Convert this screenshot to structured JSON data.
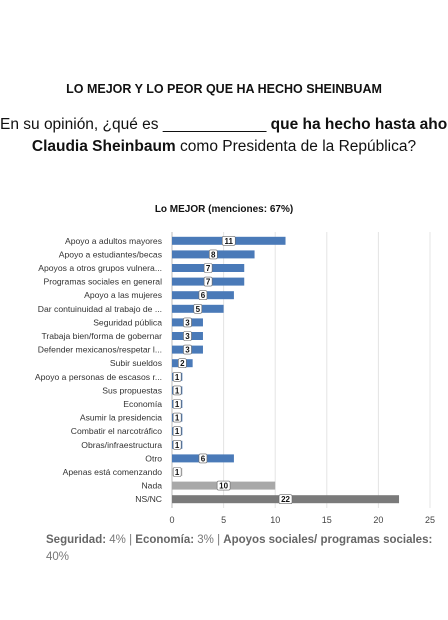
{
  "header": {
    "title": "LO MEJOR Y LO PEOR QUE HA HECHO SHEINBUAM",
    "question_part1": "En su opinión, ¿qué es",
    "question_blank": "____________",
    "question_part2": "que ha hecho hasta ahora",
    "question_name": "Claudia Sheinbaum",
    "question_part3": "como Presidenta de la República?"
  },
  "chart_data": {
    "type": "bar",
    "orientation": "horizontal",
    "title": "Lo MEJOR (menciones: 67%)",
    "categories": [
      "Apoyo a adultos mayores",
      "Apoyo a estudiantes/becas",
      "Apoyos a otros grupos vulnera...",
      "Programas sociales en general",
      "Apoyo a las mujeres",
      "Dar contuinuidad al trabajo de ...",
      "Seguridad pública",
      "Trabaja bien/forma de gobernar",
      "Defender mexicanos/respetar l...",
      "Subir sueldos",
      "Apoyo a personas de escasos r...",
      "Sus propuestas",
      "Economía",
      "Asumir la presidencia",
      "Combatir el narcotráfico",
      "Obras/infraestructura",
      "Otro",
      "Apenas está comenzando",
      "Nada",
      "NS/NC"
    ],
    "values": [
      11,
      8,
      7,
      7,
      6,
      5,
      3,
      3,
      3,
      2,
      1,
      1,
      1,
      1,
      1,
      1,
      6,
      1,
      10,
      22
    ],
    "bar_colors": [
      "#4a7ab8",
      "#4a7ab8",
      "#4a7ab8",
      "#4a7ab8",
      "#4a7ab8",
      "#4a7ab8",
      "#4a7ab8",
      "#4a7ab8",
      "#4a7ab8",
      "#4a7ab8",
      "#4a7ab8",
      "#4a7ab8",
      "#4a7ab8",
      "#4a7ab8",
      "#4a7ab8",
      "#4a7ab8",
      "#4a7ab8",
      "#c8c8c8",
      "#a8a8a8",
      "#7a7a7a"
    ],
    "xlim": [
      0,
      25
    ],
    "xticks": [
      0,
      5,
      10,
      15,
      20,
      25
    ],
    "grid": true,
    "legend": "none"
  },
  "footnote": {
    "seguridad_label": "Seguridad:",
    "seguridad_value": "4% |",
    "economia_label": "Economía:",
    "economia_value": "3% |",
    "apoyos_label": "Apoyos sociales/ programas sociales:",
    "apoyos_value": "40%"
  }
}
